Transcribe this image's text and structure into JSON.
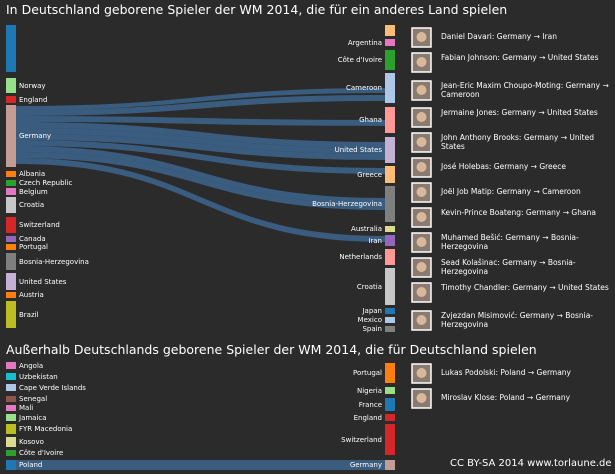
{
  "top": {
    "title": "In Deutschland geborene Spieler der WM 2014, die für ein anderes Land spielen",
    "left_nodes": [
      "Norway",
      "England",
      "Germany",
      "Albania",
      "Czech Republic",
      "Belgium",
      "Croatia",
      "Switzerland",
      "Canada",
      "Portugal",
      "Bosnia-Herzegovina",
      "United States",
      "Austria",
      "Brazil"
    ],
    "right_nodes": [
      "Argentina",
      "Côte d'Ivoire",
      "Cameroon",
      "Ghana",
      "United States",
      "Greece",
      "Bosnia-Herzegovina",
      "Australia",
      "Iran",
      "Netherlands",
      "Croatia",
      "Japan",
      "Mexico",
      "Spain"
    ],
    "players": [
      "Daniel Davari: Germany → Iran",
      "Fabian Johnson: Germany → United States",
      "Jean-Eric Maxim Choupo-Moting: Germany → Cameroon",
      "Jermaine Jones: Germany → United States",
      "John Anthony Brooks: Germany → United States",
      "José Holebas: Germany → Greece",
      "Joël Job Matip: Germany → Cameroon",
      "Kevin-Prince Boateng: Germany → Ghana",
      "Muhamed Bešić: Germany → Bosnia-Herzegovina",
      "Sead Kolašinac: Germany → Bosnia-Herzegovina",
      "Timothy Chandler: Germany → United States",
      "Zvjezdan Misimović: Germany → Bosnia-Herzegovina"
    ]
  },
  "bottom": {
    "title": "Außerhalb Deutschlands geborene Spieler der WM 2014, die für Deutschland spielen",
    "left_nodes": [
      "Angola",
      "Uzbekistan",
      "Cape Verde Islands",
      "Senegal",
      "Mali",
      "Jamaica",
      "FYR Macedonia",
      "Kosovo",
      "Côte d'Ivoire",
      "Poland"
    ],
    "right_nodes": [
      "Portugal",
      "Nigeria",
      "France",
      "England",
      "Switzerland",
      "Germany"
    ],
    "players": [
      "Lukas Podolski: Poland → Germany",
      "Miroslav Klose: Poland → Germany"
    ]
  },
  "footer": "CC BY-SA 2014 www.torlaune.de"
}
